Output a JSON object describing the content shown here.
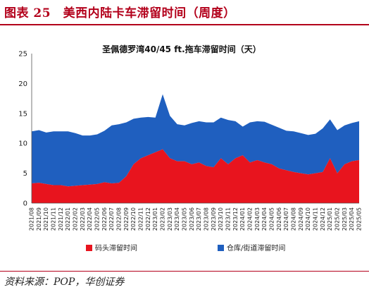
{
  "header": {
    "title": "图表 25　美西内陆卡车滞留时间（周度）"
  },
  "source": {
    "text": "资料来源：POP，华创证券"
  },
  "chart_data": {
    "type": "area",
    "stacked": true,
    "title": "圣佩德罗湾40/45 ft.拖车滞留时间（天）",
    "ylim": [
      0,
      25
    ],
    "yticks": [
      0,
      5,
      10,
      15,
      20,
      25
    ],
    "grid": false,
    "legend_position": "bottom",
    "categories": [
      "2021/08",
      "2021/09",
      "2021/10",
      "2021/11",
      "2021/12",
      "2022/01",
      "2022/02",
      "2022/03",
      "2022/04",
      "2022/05",
      "2022/06",
      "2022/07",
      "2022/08",
      "2022/09",
      "2022/10",
      "2022/11",
      "2022/12",
      "2023/01",
      "2023/02",
      "2023/03",
      "2023/04",
      "2023/05",
      "2023/06",
      "2023/07",
      "2023/08",
      "2023/09",
      "2023/10",
      "2023/11",
      "2023/12",
      "2024/01",
      "2024/02",
      "2024/03",
      "2024/04",
      "2024/05",
      "2024/06",
      "2024/07",
      "2024/08",
      "2024/09",
      "2024/10",
      "2024/11",
      "2024/12",
      "2025/01",
      "2025/02",
      "2025/03",
      "2025/04",
      "2025/05"
    ],
    "series": [
      {
        "name": "码头滞留时间",
        "color": "#e8141e",
        "values": [
          3.3,
          3.4,
          3.2,
          3.0,
          3.0,
          2.8,
          2.9,
          3.0,
          3.1,
          3.2,
          3.5,
          3.3,
          3.4,
          4.5,
          6.5,
          7.5,
          8.0,
          8.5,
          9.0,
          7.5,
          7.0,
          7.0,
          6.5,
          6.8,
          6.2,
          6.0,
          7.5,
          6.5,
          7.5,
          8.0,
          6.8,
          7.2,
          6.8,
          6.5,
          5.8,
          5.5,
          5.2,
          5.0,
          4.8,
          5.0,
          5.2,
          7.5,
          5.0,
          6.5,
          7.0,
          7.2
        ]
      },
      {
        "name": "仓库/街道滞留时间",
        "color": "#1f5fbf",
        "values": [
          8.7,
          8.8,
          8.6,
          9.0,
          9.0,
          9.2,
          8.8,
          8.3,
          8.2,
          8.3,
          8.6,
          9.7,
          9.8,
          9.0,
          7.6,
          6.8,
          6.4,
          5.8,
          9.2,
          7.1,
          6.2,
          6.0,
          6.9,
          6.9,
          7.3,
          7.5,
          6.8,
          7.4,
          6.2,
          4.8,
          6.7,
          6.5,
          6.8,
          6.6,
          6.8,
          6.6,
          6.8,
          6.7,
          6.6,
          6.6,
          7.3,
          6.5,
          7.2,
          6.5,
          6.4,
          6.5
        ]
      }
    ]
  }
}
